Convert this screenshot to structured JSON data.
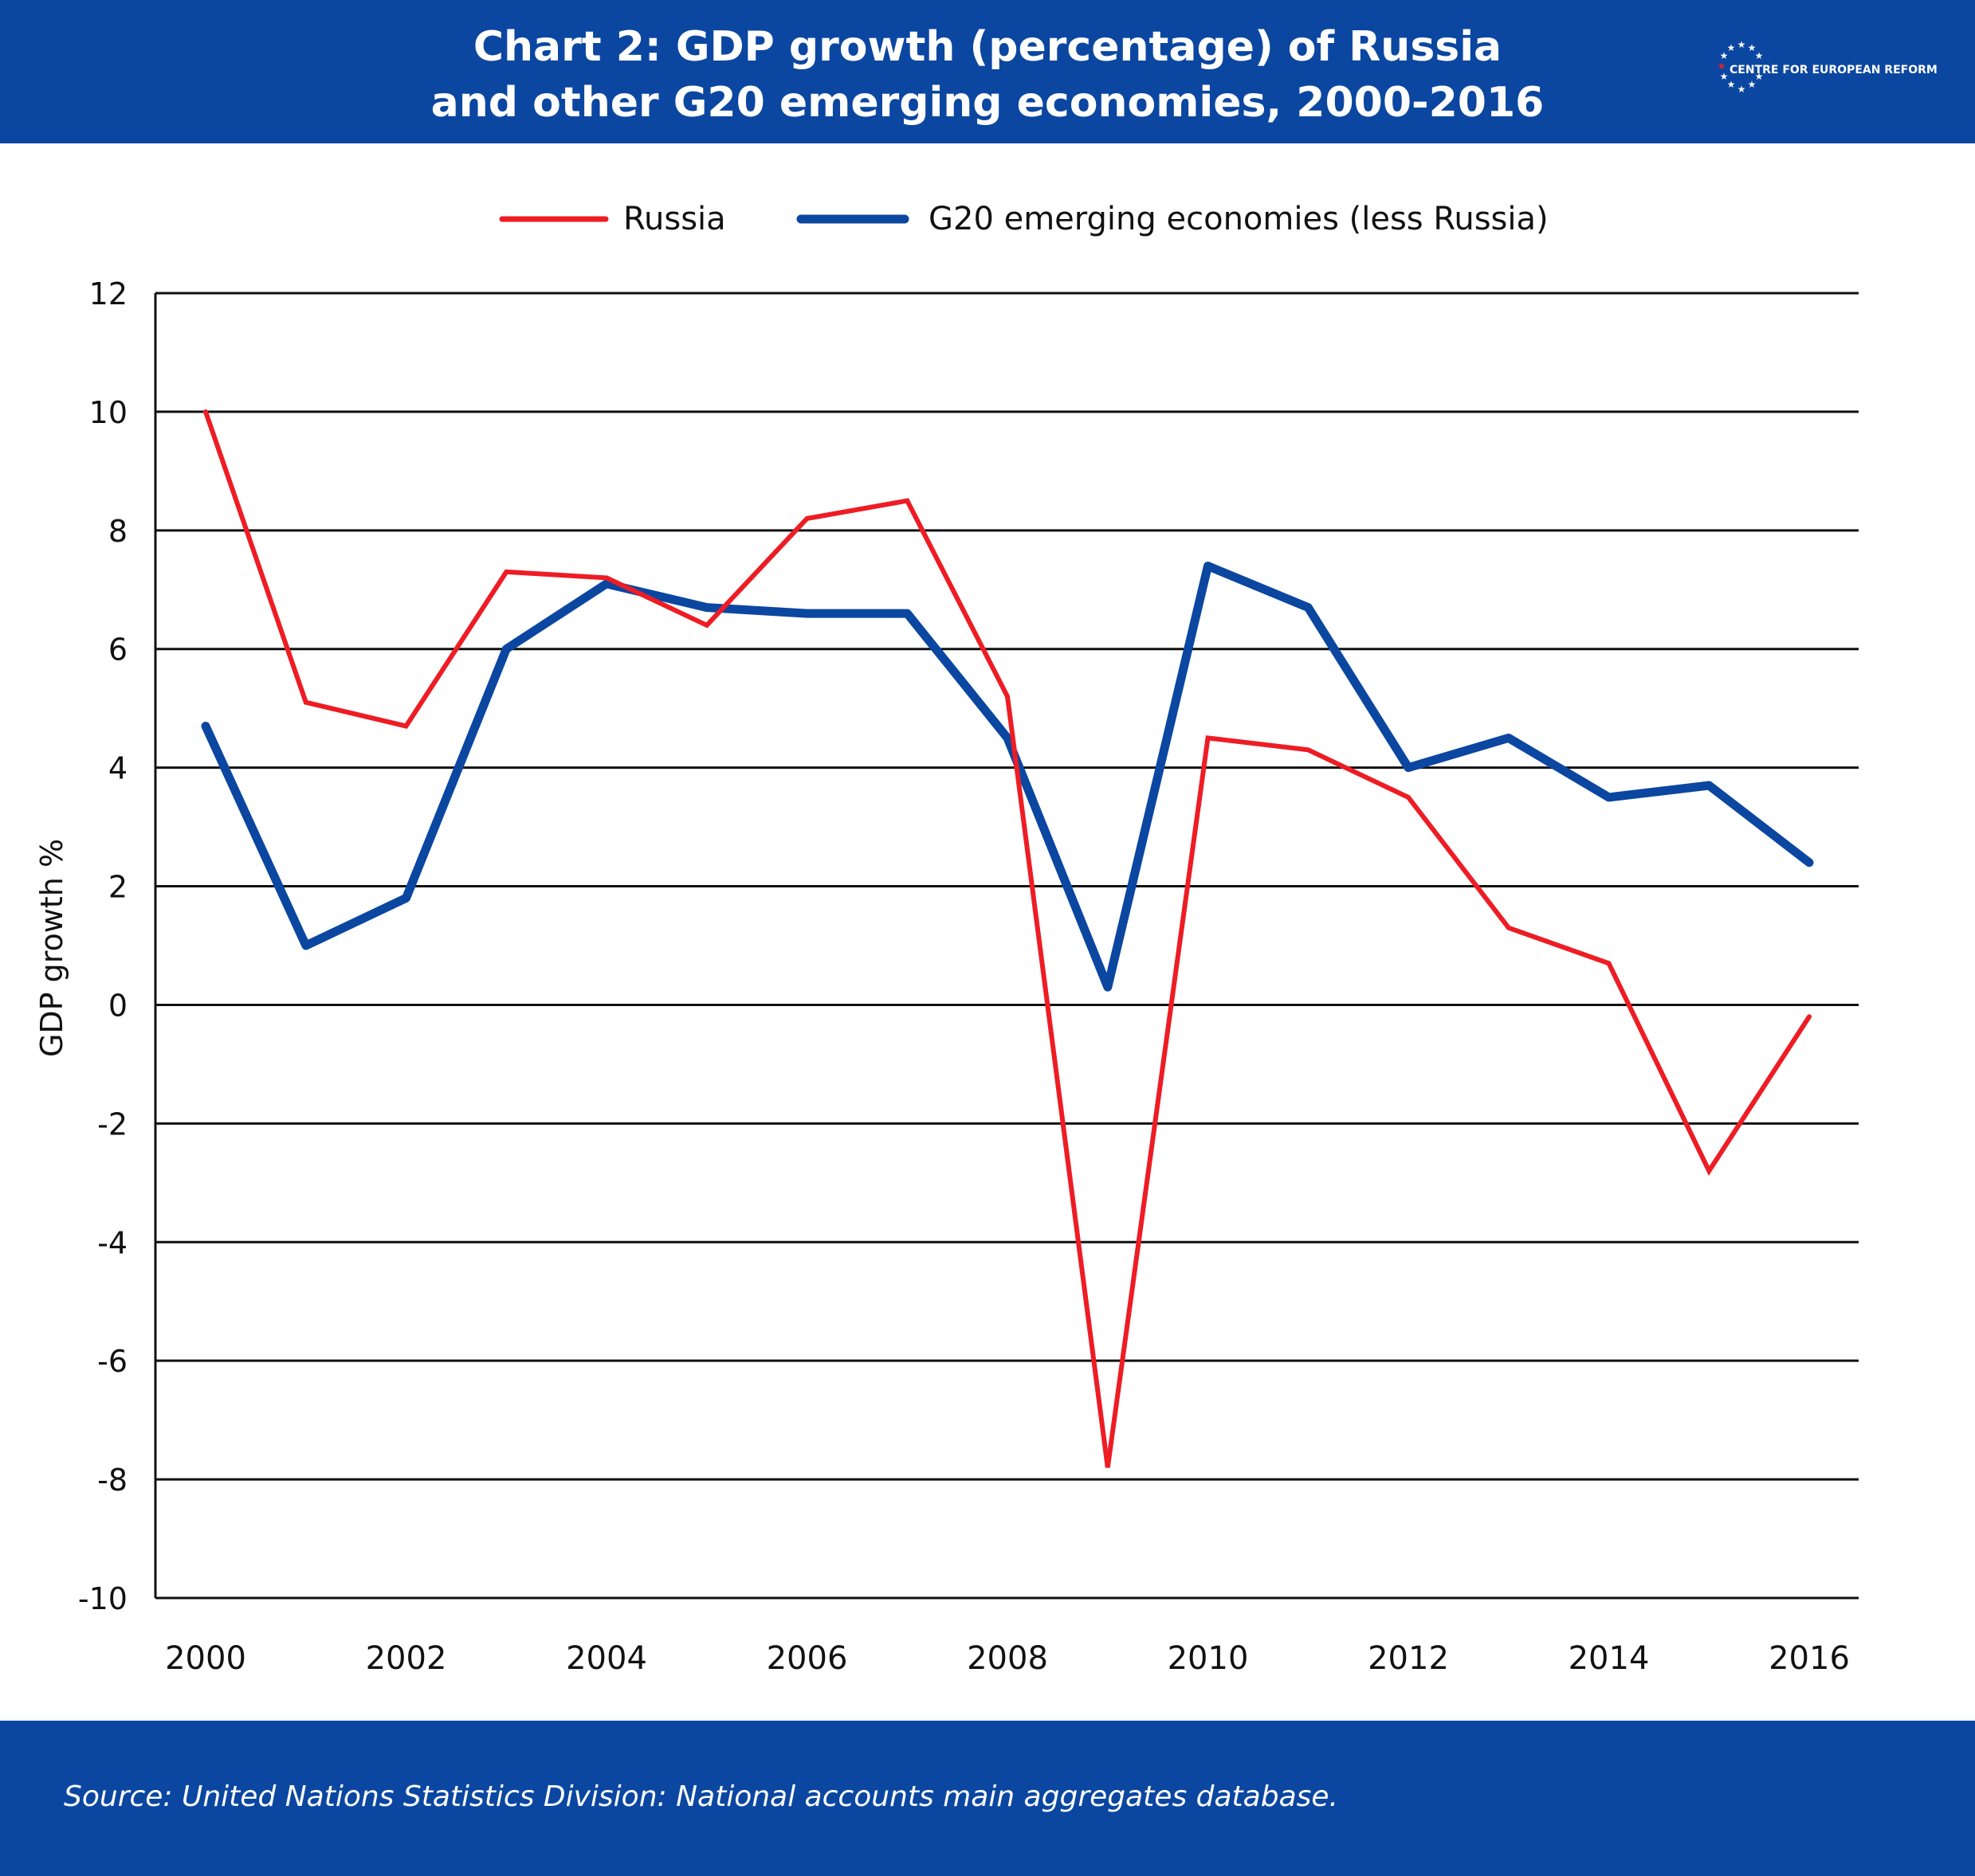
{
  "title": {
    "line1": "Chart 2: GDP growth (percentage) of Russia",
    "line2": "and other G20 emerging economies, 2000-2016"
  },
  "logo": {
    "text": "CENTRE FOR EUROPEAN REFORM",
    "icon": "star-circle-icon"
  },
  "source": "Source: United Nations Statistics Division: National accounts main aggregates database.",
  "colors": {
    "header": "#0b47a1",
    "russia": "#ee1c24",
    "g20": "#0b47a1"
  },
  "chart_data": {
    "type": "line",
    "title": "Chart 2: GDP growth (percentage) of Russia and other G20 emerging economies, 2000-2016",
    "xlabel": "",
    "ylabel": "GDP growth %",
    "ylim": [
      -10,
      12
    ],
    "yticks": [
      12,
      10,
      8,
      6,
      4,
      2,
      0,
      -2,
      -4,
      -6,
      -8,
      -10
    ],
    "xlim": [
      2000,
      2016
    ],
    "xticks": [
      2000,
      2002,
      2004,
      2006,
      2008,
      2010,
      2012,
      2014,
      2016
    ],
    "grid": true,
    "legend": "top-center",
    "x": [
      2000,
      2001,
      2002,
      2003,
      2004,
      2005,
      2006,
      2007,
      2008,
      2009,
      2010,
      2011,
      2012,
      2013,
      2014,
      2015,
      2016
    ],
    "series": [
      {
        "name": "Russia",
        "color": "#ee1c24",
        "values": [
          10.0,
          5.1,
          4.7,
          7.3,
          7.2,
          6.4,
          8.2,
          8.5,
          5.2,
          -7.8,
          4.5,
          4.3,
          3.5,
          1.3,
          0.7,
          -2.8,
          -0.2
        ]
      },
      {
        "name": "G20 emerging economies (less Russia)",
        "color": "#0b47a1",
        "values": [
          4.7,
          1.0,
          1.8,
          6.0,
          7.1,
          6.7,
          6.6,
          6.6,
          4.5,
          0.3,
          7.4,
          6.7,
          4.0,
          4.5,
          3.5,
          3.7,
          2.4
        ]
      }
    ]
  }
}
